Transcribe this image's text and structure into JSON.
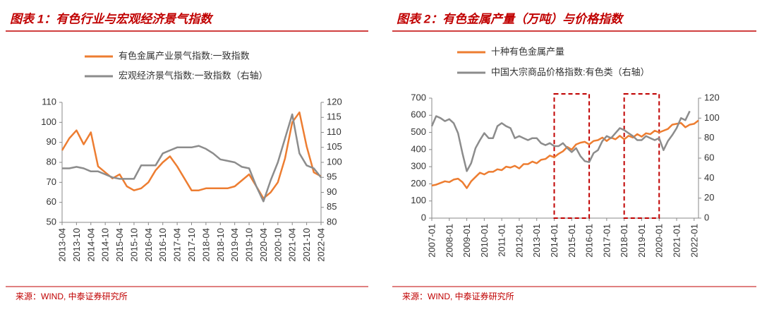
{
  "chart_data": [
    {
      "type": "line",
      "title": "图表 1：有色行业与宏观经济景气指数",
      "source": "来源：WIND, 中泰证券研究所",
      "categories": [
        "2013-04",
        null,
        "2013-10",
        null,
        "2014-04",
        null,
        "2014-10",
        null,
        "2015-04",
        null,
        "2015-10",
        null,
        "2016-04",
        null,
        "2016-10",
        null,
        "2017-04",
        null,
        "2017-10",
        null,
        "2018-04",
        null,
        "2018-10",
        null,
        "2019-04",
        null,
        "2019-10",
        null,
        "2020-04",
        null,
        "2020-10",
        null,
        "2021-04",
        null,
        "2021-10",
        null,
        "2022-04"
      ],
      "series": [
        {
          "name": "有色金属产业景气指数:一致指数",
          "color": "#ed7d31",
          "values": [
            86,
            92,
            96,
            89,
            95,
            78,
            75,
            72,
            74,
            68,
            66,
            67,
            70,
            76,
            80,
            83,
            78,
            72,
            66,
            66,
            67,
            67,
            67,
            67,
            68,
            71,
            74,
            68,
            62,
            65,
            70,
            82,
            100,
            105,
            88,
            75,
            73
          ]
        },
        {
          "name": "宏观经济景气指数:一致指数（右轴）",
          "color": "#8c8c8c",
          "axis": "y2",
          "values": [
            98,
            98,
            98.5,
            98,
            97,
            97,
            96,
            95,
            94.5,
            94.5,
            94.5,
            99,
            99,
            99,
            103,
            104,
            105,
            105,
            105,
            105.5,
            104.5,
            103,
            101,
            100.5,
            100,
            98.5,
            98,
            92,
            87,
            94,
            100,
            108,
            116,
            103,
            99,
            98,
            95
          ]
        }
      ],
      "ylim": [
        50,
        110
      ],
      "yticks": [
        50,
        60,
        70,
        80,
        90,
        100,
        110
      ],
      "y2lim": [
        80,
        120
      ],
      "y2ticks": [
        80,
        85,
        90,
        95,
        100,
        105,
        110,
        115,
        120
      ]
    },
    {
      "type": "line",
      "title": "图表 2：有色金属产量（万吨）与价格指数",
      "source": "来源：WIND, 中泰证券研究所",
      "categories": [
        "2007-01",
        null,
        null,
        null,
        "2008-01",
        null,
        null,
        null,
        "2009-01",
        null,
        null,
        null,
        "2010-01",
        null,
        null,
        null,
        "2011-01",
        null,
        null,
        null,
        "2012-01",
        null,
        null,
        null,
        "2013-01",
        null,
        null,
        null,
        "2014-01",
        null,
        null,
        null,
        "2015-01",
        null,
        null,
        null,
        "2016-01",
        null,
        null,
        null,
        "2017-01",
        null,
        null,
        null,
        "2018-01",
        null,
        null,
        null,
        "2019-01",
        null,
        null,
        null,
        "2020-01",
        null,
        null,
        null,
        "2021-01",
        null,
        null,
        null,
        "2022-01",
        null
      ],
      "series": [
        {
          "name": "十种有色金属产量",
          "color": "#ed7d31",
          "values": [
            190,
            195,
            205,
            215,
            210,
            225,
            230,
            210,
            175,
            215,
            240,
            265,
            255,
            270,
            270,
            285,
            280,
            300,
            295,
            305,
            290,
            315,
            315,
            330,
            320,
            340,
            345,
            365,
            355,
            375,
            390,
            415,
            400,
            430,
            440,
            445,
            430,
            450,
            455,
            470,
            450,
            470,
            460,
            480,
            460,
            480,
            470,
            490,
            475,
            495,
            490,
            510,
            500,
            510,
            520,
            545,
            550,
            555,
            530,
            545,
            550,
            570
          ]
        },
        {
          "name": "中国大宗商品价格指数:有色类（右轴）",
          "color": "#8c8c8c",
          "axis": "y2",
          "values": [
            92,
            102,
            100,
            97,
            99,
            95,
            85,
            65,
            47,
            55,
            70,
            78,
            85,
            80,
            80,
            92,
            95,
            92,
            90,
            80,
            82,
            80,
            78,
            80,
            80,
            75,
            73,
            75,
            72,
            72,
            75,
            70,
            66,
            70,
            62,
            57,
            56,
            65,
            68,
            77,
            82,
            80,
            85,
            90,
            88,
            85,
            82,
            78,
            78,
            82,
            80,
            78,
            80,
            68,
            77,
            83,
            90,
            100,
            98,
            107,
            null,
            null
          ]
        }
      ],
      "highlights": [
        {
          "from": "2014-01",
          "to": "2016-01"
        },
        {
          "from": "2018-01",
          "to": "2020-01"
        }
      ],
      "ylim": [
        0,
        700
      ],
      "yticks": [
        0,
        100,
        200,
        300,
        400,
        500,
        600,
        700
      ],
      "y2lim": [
        0,
        120
      ],
      "y2ticks": [
        0,
        20,
        40,
        60,
        80,
        100,
        120
      ]
    }
  ]
}
